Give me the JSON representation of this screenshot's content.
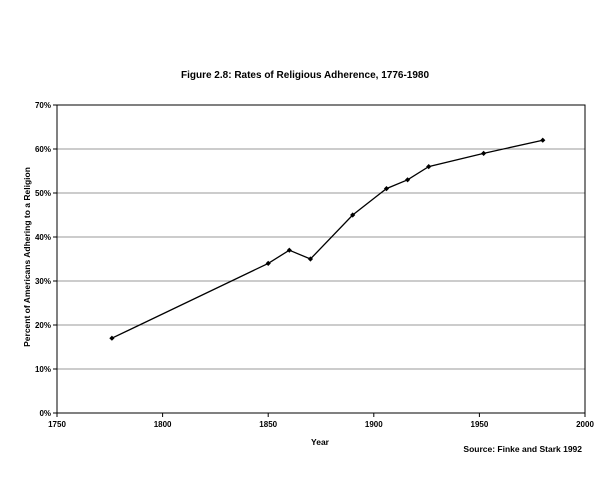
{
  "chart_data": {
    "type": "line",
    "title": "Figure 2.8: Rates of Religious Adherence, 1776-1980",
    "xlabel": "Year",
    "ylabel": "Percent of Americans Adhering to a Religion",
    "source": "Source: Finke and Stark 1992",
    "xlim": [
      1750,
      2000
    ],
    "ylim": [
      0,
      70
    ],
    "x_ticks": [
      1750,
      1800,
      1850,
      1900,
      1950,
      2000
    ],
    "y_ticks": [
      0,
      10,
      20,
      30,
      40,
      50,
      60,
      70
    ],
    "y_tick_suffix": "%",
    "grid": "horizontal",
    "series": [
      {
        "x": [
          1776,
          1850,
          1860,
          1870,
          1890,
          1906,
          1916,
          1926,
          1952,
          1980
        ],
        "y": [
          17,
          34,
          37,
          35,
          45,
          51,
          53,
          56,
          59,
          62
        ]
      }
    ],
    "line_color": "#000000",
    "grid_color": "#9a9a9a"
  }
}
